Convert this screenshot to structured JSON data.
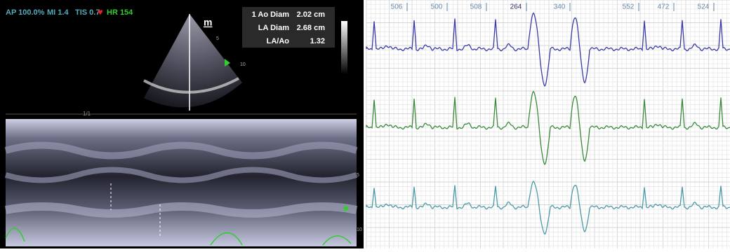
{
  "echo": {
    "status": {
      "ap": "AP 100.0%",
      "mi": "MI 1.4",
      "tis": "TIS 0.7",
      "hr": "HR 154"
    },
    "mode_label": "m",
    "measurements": [
      {
        "label": "1 Ao Diam",
        "value": "2.02 cm"
      },
      {
        "label": "LA Diam",
        "value": "2.68 cm"
      },
      {
        "label": "LA/Ao",
        "value": "1.32"
      }
    ],
    "sector_depth_labels": [
      "5",
      "10"
    ],
    "timeline_label": "1/1",
    "mmode_depth_labels": [
      "5",
      "10"
    ]
  },
  "ecg": {
    "intervals": [
      "506",
      "500",
      "508",
      "264",
      "340",
      "552",
      "472",
      "524"
    ]
  }
}
